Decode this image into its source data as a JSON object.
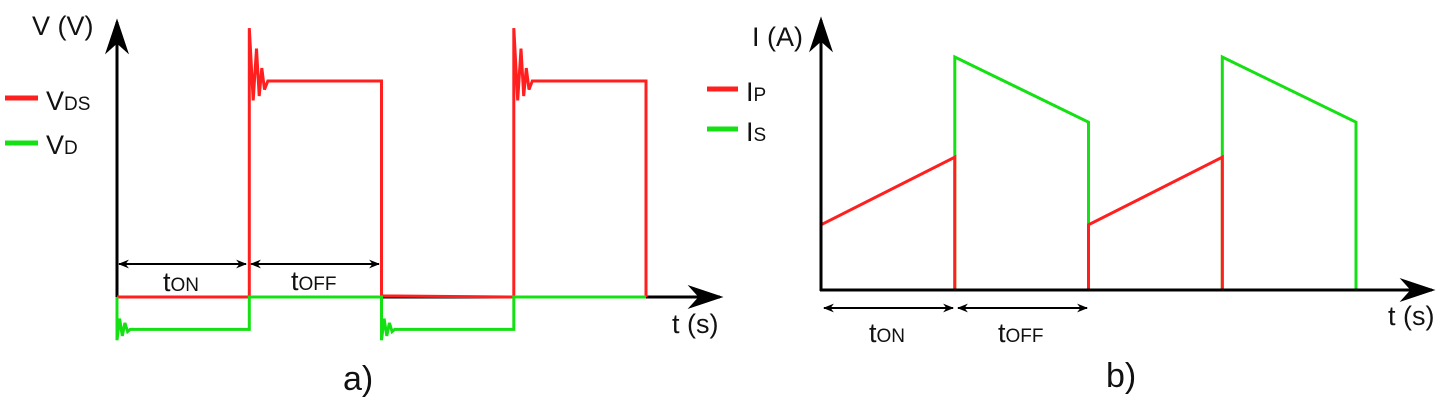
{
  "colors": {
    "red": "#ff1f1f",
    "green": "#14e014",
    "axis": "#000000"
  },
  "chart_data": [
    {
      "type": "line",
      "caption": "a)",
      "ylabel": "V (V)",
      "xlabel": "t (s)",
      "legend_placement": "left",
      "grid": false,
      "intervals": [
        {
          "main": "t",
          "sub": "ON"
        },
        {
          "main": "t",
          "sub": "OFF"
        }
      ],
      "series": [
        {
          "name": "V",
          "name_sub": "DS",
          "color": "#ff1f1f",
          "points": [
            [
              0,
              0
            ],
            [
              1,
              0
            ],
            [
              1,
              1.245
            ],
            [
              1.03,
              0.91
            ],
            [
              1.055,
              1.15
            ],
            [
              1.075,
              0.93
            ],
            [
              1.095,
              1.06
            ],
            [
              1.115,
              0.96
            ],
            [
              1.14,
              1
            ],
            [
              2,
              1
            ],
            [
              2,
              0.005
            ],
            [
              3,
              0
            ],
            [
              3,
              1.245
            ],
            [
              3.03,
              0.91
            ],
            [
              3.055,
              1.15
            ],
            [
              3.075,
              0.93
            ],
            [
              3.095,
              1.06
            ],
            [
              3.115,
              0.96
            ],
            [
              3.14,
              1
            ],
            [
              4,
              1
            ],
            [
              4,
              0
            ]
          ]
        },
        {
          "name": "V",
          "name_sub": "D",
          "color": "#14e014",
          "points": [
            [
              0,
              0
            ],
            [
              0,
              -0.2
            ],
            [
              0.02,
              -0.1
            ],
            [
              0.04,
              -0.18
            ],
            [
              0.06,
              -0.12
            ],
            [
              0.08,
              -0.16
            ],
            [
              0.1,
              -0.15
            ],
            [
              1,
              -0.15
            ],
            [
              1,
              0
            ],
            [
              2,
              0
            ],
            [
              2,
              -0.2
            ],
            [
              2.02,
              -0.1
            ],
            [
              2.04,
              -0.18
            ],
            [
              2.06,
              -0.12
            ],
            [
              2.08,
              -0.16
            ],
            [
              2.1,
              -0.15
            ],
            [
              3,
              -0.15
            ],
            [
              3,
              0
            ],
            [
              4,
              0
            ]
          ]
        }
      ]
    },
    {
      "type": "line",
      "caption": "b)",
      "ylabel": "I (A)",
      "xlabel": "t (s)",
      "legend_placement": "left",
      "grid": false,
      "intervals": [
        {
          "main": "t",
          "sub": "ON"
        },
        {
          "main": "t",
          "sub": "OFF"
        }
      ],
      "series": [
        {
          "name": "I",
          "name_sub": "S",
          "color": "#14e014",
          "points": [
            [
              0,
              0
            ],
            [
              1,
              0
            ],
            [
              1,
              1
            ],
            [
              2,
              0.72
            ],
            [
              2,
              0
            ],
            [
              3,
              0
            ],
            [
              3,
              1
            ],
            [
              4,
              0.72
            ],
            [
              4,
              0
            ]
          ]
        },
        {
          "name": "I",
          "name_sub": "P",
          "color": "#ff1f1f",
          "points": [
            [
              0,
              0.28
            ],
            [
              1,
              0.57
            ],
            [
              1,
              0
            ],
            [
              2,
              0
            ],
            [
              2,
              0.28
            ],
            [
              3,
              0.57
            ],
            [
              3,
              0
            ],
            [
              4,
              0
            ]
          ]
        }
      ]
    }
  ]
}
